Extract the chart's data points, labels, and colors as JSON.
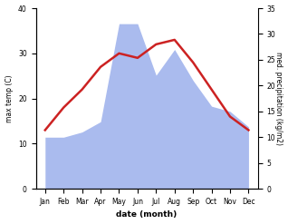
{
  "months": [
    "Jan",
    "Feb",
    "Mar",
    "Apr",
    "May",
    "Jun",
    "Jul",
    "Aug",
    "Sep",
    "Oct",
    "Nov",
    "Dec"
  ],
  "x": [
    1,
    2,
    3,
    4,
    5,
    6,
    7,
    8,
    9,
    10,
    11,
    12
  ],
  "temp": [
    13,
    18,
    22,
    27,
    30,
    29,
    32,
    33,
    28,
    22,
    16,
    13
  ],
  "precip": [
    10,
    10,
    11,
    13,
    32,
    32,
    22,
    27,
    21,
    16,
    15,
    12
  ],
  "temp_color": "#cc2222",
  "precip_color": "#aabbee",
  "temp_lim": [
    0,
    40
  ],
  "precip_lim": [
    0,
    35
  ],
  "xlim": [
    0.5,
    12.5
  ],
  "xlabel": "date (month)",
  "ylabel_left": "max temp (C)",
  "ylabel_right": "med. precipitation (kg/m2)",
  "temp_linewidth": 1.8,
  "fig_width": 3.18,
  "fig_height": 2.47,
  "dpi": 100,
  "left_yticks": [
    0,
    10,
    20,
    30,
    40
  ],
  "right_yticks": [
    0,
    5,
    10,
    15,
    20,
    25,
    30,
    35
  ]
}
